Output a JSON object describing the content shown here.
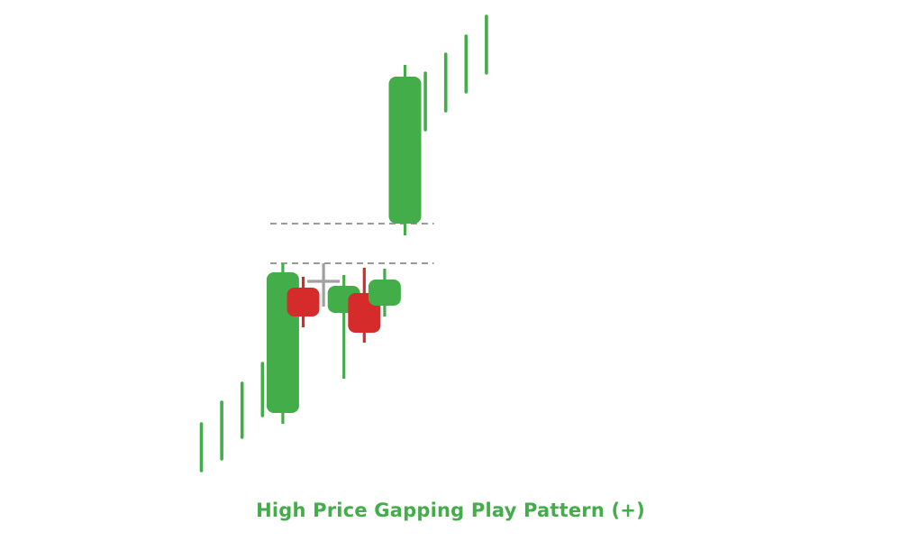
{
  "title": "High Price Gapping Play Pattern (+)",
  "colors": {
    "bullish": "#43ad49",
    "bearish": "#d62b2b",
    "neutral": "#a0a0a0",
    "reference_line": "#9a9a9a",
    "title": "#43ad49"
  },
  "chart_data": {
    "type": "candlestick",
    "title": "High Price Gapping Play Pattern (+)",
    "xlabel": "",
    "ylabel": "",
    "grid": false,
    "axes_visible": false,
    "candles": [
      {
        "index": 1,
        "kind": "line",
        "direction": "up",
        "low": 8,
        "high": 60
      },
      {
        "index": 2,
        "kind": "line",
        "direction": "up",
        "low": 21,
        "high": 84
      },
      {
        "index": 3,
        "kind": "line",
        "direction": "up",
        "low": 45,
        "high": 105
      },
      {
        "index": 4,
        "kind": "line",
        "direction": "up",
        "low": 69,
        "high": 127
      },
      {
        "index": 5,
        "kind": "candle",
        "direction": "up",
        "open": 72,
        "close": 228,
        "low": 60,
        "high": 238
      },
      {
        "index": 6,
        "kind": "candle",
        "direction": "down",
        "open": 211,
        "close": 179,
        "low": 167,
        "high": 223
      },
      {
        "index": 7,
        "kind": "doji",
        "direction": "neutral",
        "open": 218,
        "close": 218,
        "low": 190,
        "high": 238
      },
      {
        "index": 8,
        "kind": "candle",
        "direction": "up",
        "open": 183,
        "close": 213,
        "low": 110,
        "high": 225
      },
      {
        "index": 9,
        "kind": "candle",
        "direction": "down",
        "open": 205,
        "close": 161,
        "low": 150,
        "high": 233
      },
      {
        "index": 10,
        "kind": "candle",
        "direction": "up",
        "open": 191,
        "close": 220,
        "low": 179,
        "high": 232
      },
      {
        "index": 11,
        "kind": "candle",
        "direction": "up",
        "open": 282,
        "close": 445,
        "low": 269,
        "high": 458
      },
      {
        "index": 12,
        "kind": "line",
        "direction": "up",
        "low": 386,
        "high": 449
      },
      {
        "index": 13,
        "kind": "line",
        "direction": "up",
        "low": 407,
        "high": 470
      },
      {
        "index": 14,
        "kind": "line",
        "direction": "up",
        "low": 428,
        "high": 490
      },
      {
        "index": 15,
        "kind": "line",
        "direction": "up",
        "low": 449,
        "high": 512
      }
    ],
    "reference_lines": [
      {
        "style": "dashed",
        "value": 282,
        "from_index": 5,
        "to_index": 11
      },
      {
        "style": "dashed",
        "value": 238,
        "from_index": 5,
        "to_index": 11
      }
    ]
  }
}
